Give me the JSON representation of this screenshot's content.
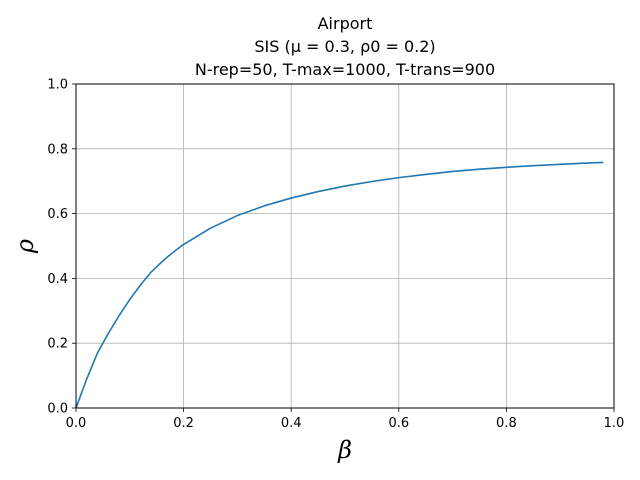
{
  "chart_data": {
    "type": "line",
    "title_lines": [
      "Airport",
      "SIS (μ = 0.3, ρ0 = 0.2)",
      "N-rep=50,   T-max=1000,   T-trans=900"
    ],
    "xlabel": "β",
    "ylabel": "ρ",
    "xlim": [
      0.0,
      1.0
    ],
    "ylim": [
      0.0,
      1.0
    ],
    "xticks": [
      "0.0",
      "0.2",
      "0.4",
      "0.6",
      "0.8",
      "1.0"
    ],
    "yticks": [
      "0.0",
      "0.2",
      "0.4",
      "0.6",
      "0.8",
      "1.0"
    ],
    "grid": true,
    "series": [
      {
        "color": "#1f77b4",
        "x": [
          0.0,
          0.02,
          0.04,
          0.06,
          0.08,
          0.1,
          0.12,
          0.14,
          0.16,
          0.18,
          0.2,
          0.25,
          0.3,
          0.35,
          0.4,
          0.45,
          0.5,
          0.55,
          0.6,
          0.65,
          0.7,
          0.75,
          0.8,
          0.85,
          0.9,
          0.95,
          0.98
        ],
        "y": [
          0.0,
          0.09,
          0.17,
          0.23,
          0.285,
          0.335,
          0.38,
          0.42,
          0.452,
          0.48,
          0.505,
          0.555,
          0.594,
          0.624,
          0.648,
          0.668,
          0.685,
          0.699,
          0.711,
          0.721,
          0.73,
          0.737,
          0.743,
          0.748,
          0.752,
          0.756,
          0.758
        ]
      }
    ]
  }
}
